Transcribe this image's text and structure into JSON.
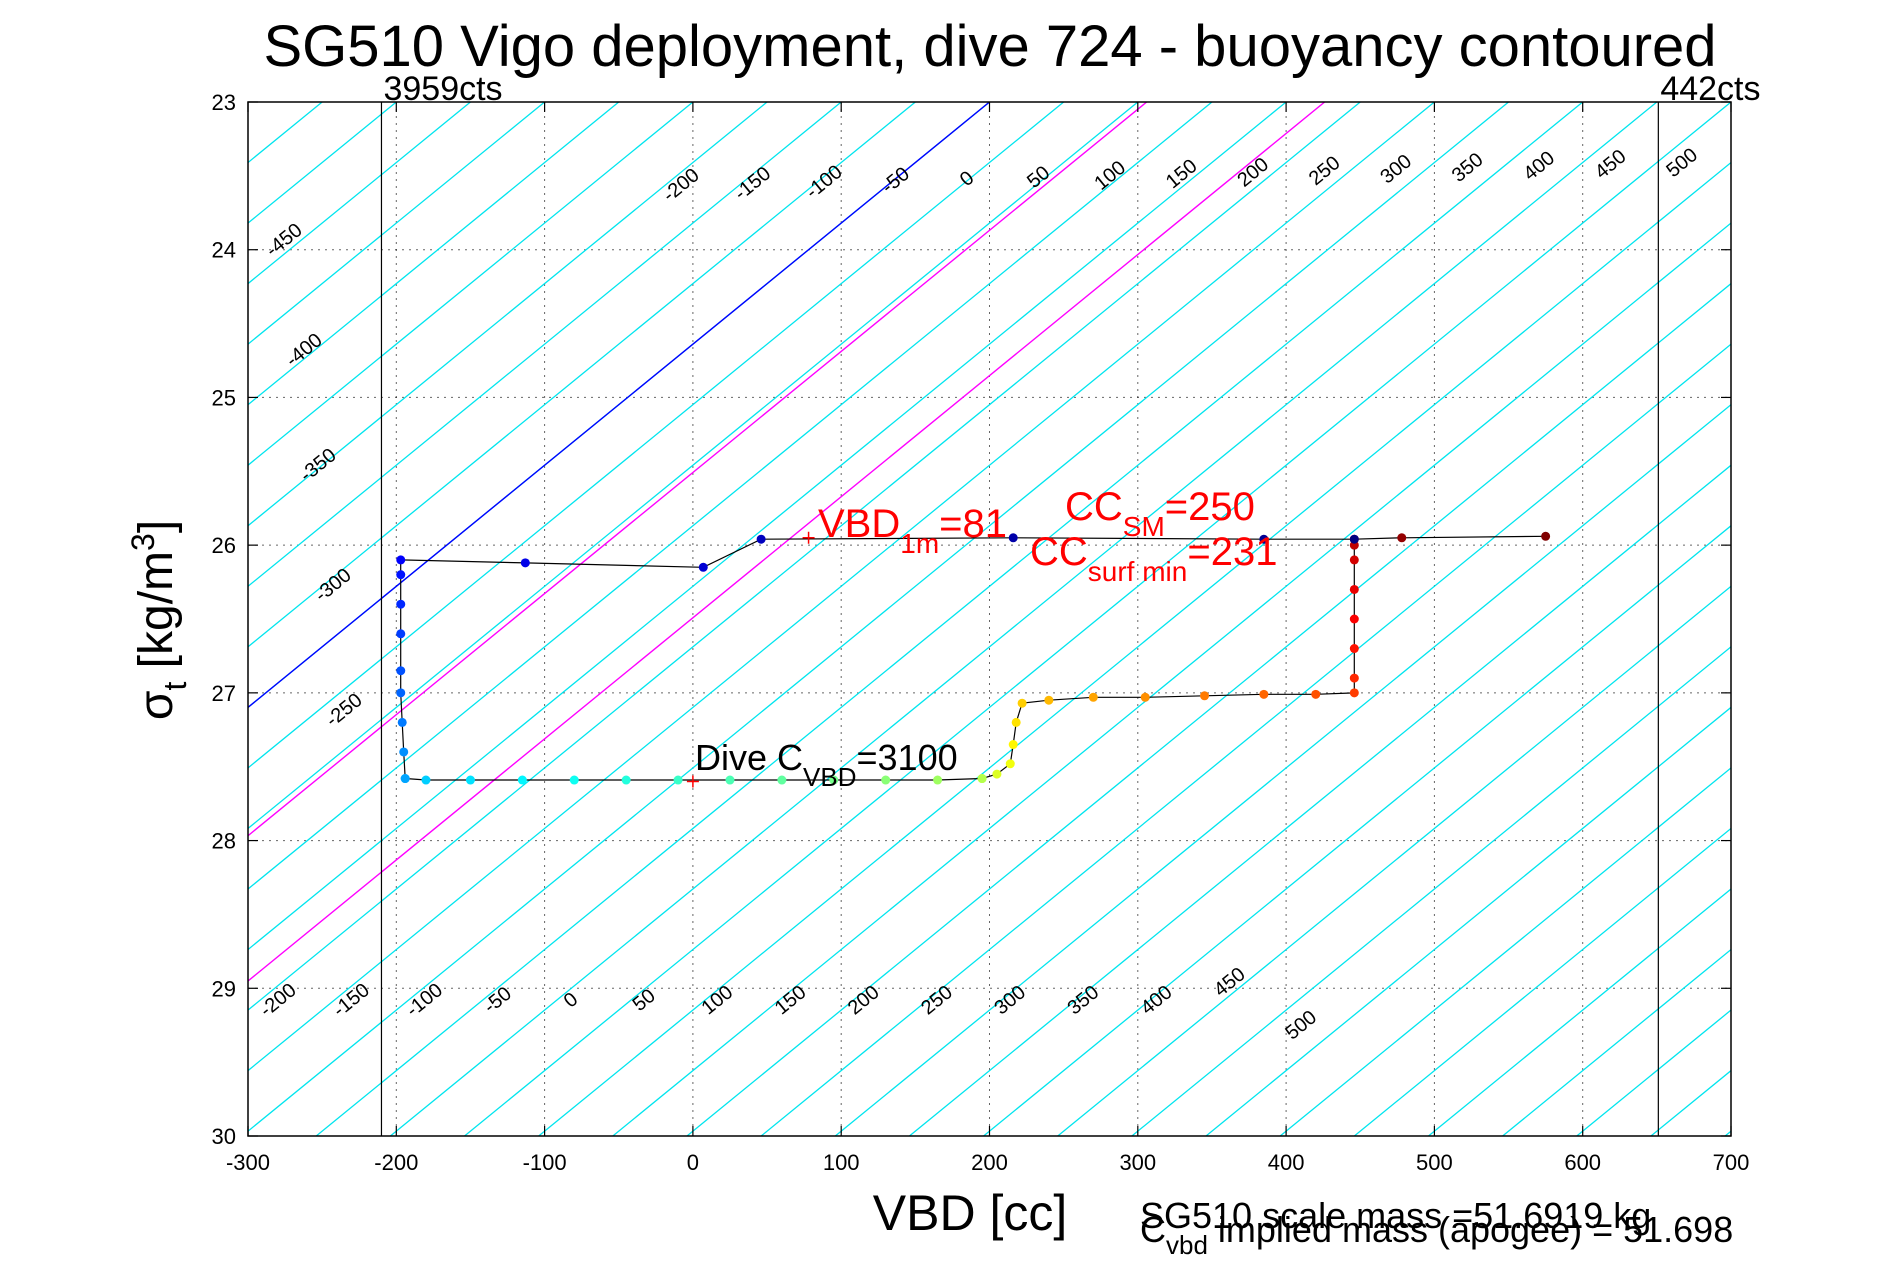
{
  "chart_data": {
    "type": "scatter",
    "title": "SG510 Vigo deployment, dive 724 - buoyancy contoured",
    "xlabel": "VBD [cc]",
    "ylabel": {
      "base": "σ",
      "sub": "t",
      "rest": " [kg/m",
      "sup": "3",
      "close": "]"
    },
    "xlim": [
      -300,
      700
    ],
    "ylim": [
      23,
      30
    ],
    "y_reversed": true,
    "grid": true,
    "xticks": [
      -300,
      -200,
      -100,
      0,
      100,
      200,
      300,
      400,
      500,
      600,
      700
    ],
    "yticks": [
      23,
      24,
      25,
      26,
      27,
      28,
      29,
      30
    ],
    "count_lines": [
      {
        "x": -210,
        "label": "3959cts",
        "side": "right"
      },
      {
        "x": 651,
        "label": "442cts",
        "side": "left"
      }
    ],
    "contours": {
      "slope_cc_per_sigma": -122,
      "color": "#00e5ee",
      "upper_labels": [
        "-450",
        "-400",
        "-350",
        "-300",
        "-250",
        "-200",
        "-150",
        "-100",
        "-50",
        "0",
        "50",
        "100",
        "150",
        "200",
        "250",
        "300",
        "350",
        "400",
        "450",
        "500"
      ],
      "lower_labels": [
        "-200",
        "-150",
        "-100",
        "-50",
        "0",
        "50",
        "100",
        "150",
        "200",
        "250",
        "300",
        "350",
        "400",
        "450",
        "500"
      ],
      "zero_color": "#0000ff",
      "highlight_color": "#ff00ff",
      "highlight_values": [
        81,
        231,
        250
      ]
    },
    "trace": {
      "descent": [
        {
          "x": 575,
          "y": 25.94
        },
        {
          "x": 478,
          "y": 25.95
        },
        {
          "x": 446,
          "y": 25.96
        },
        {
          "x": 446,
          "y": 26.0
        },
        {
          "x": 446,
          "y": 26.1
        },
        {
          "x": 446,
          "y": 26.3
        },
        {
          "x": 446,
          "y": 26.5
        },
        {
          "x": 446,
          "y": 26.7
        },
        {
          "x": 446,
          "y": 26.9
        },
        {
          "x": 446,
          "y": 27.0
        },
        {
          "x": 420,
          "y": 27.01
        },
        {
          "x": 385,
          "y": 27.01
        },
        {
          "x": 345,
          "y": 27.02
        },
        {
          "x": 305,
          "y": 27.03
        },
        {
          "x": 270,
          "y": 27.03
        },
        {
          "x": 240,
          "y": 27.05
        },
        {
          "x": 222,
          "y": 27.07
        },
        {
          "x": 218,
          "y": 27.2
        },
        {
          "x": 216,
          "y": 27.35
        },
        {
          "x": 214,
          "y": 27.48
        },
        {
          "x": 205,
          "y": 27.55
        },
        {
          "x": 195,
          "y": 27.58
        }
      ],
      "bottom": [
        {
          "x": 195,
          "y": 27.58
        },
        {
          "x": 165,
          "y": 27.59
        },
        {
          "x": 130,
          "y": 27.59
        },
        {
          "x": 95,
          "y": 27.59
        },
        {
          "x": 60,
          "y": 27.59
        },
        {
          "x": 25,
          "y": 27.59
        },
        {
          "x": -10,
          "y": 27.59
        },
        {
          "x": -45,
          "y": 27.59
        },
        {
          "x": -80,
          "y": 27.59
        },
        {
          "x": -115,
          "y": 27.59
        },
        {
          "x": -150,
          "y": 27.59
        },
        {
          "x": -180,
          "y": 27.59
        },
        {
          "x": -194,
          "y": 27.58
        }
      ],
      "ascent": [
        {
          "x": -194,
          "y": 27.58
        },
        {
          "x": -195,
          "y": 27.4
        },
        {
          "x": -196,
          "y": 27.2
        },
        {
          "x": -197,
          "y": 27.0
        },
        {
          "x": -197,
          "y": 26.85
        },
        {
          "x": -197,
          "y": 26.6
        },
        {
          "x": -197,
          "y": 26.4
        },
        {
          "x": -197,
          "y": 26.2
        },
        {
          "x": -197,
          "y": 26.1
        },
        {
          "x": -113,
          "y": 26.12
        },
        {
          "x": 7,
          "y": 26.15
        },
        {
          "x": 46,
          "y": 25.96
        },
        {
          "x": 216,
          "y": 25.95
        },
        {
          "x": 385,
          "y": 25.96
        },
        {
          "x": 446,
          "y": 25.96
        }
      ]
    },
    "markers": [
      {
        "x": 78,
        "y": 25.95,
        "color": "#ff0000"
      },
      {
        "x": 0,
        "y": 27.6,
        "color": "#ff0000"
      }
    ]
  },
  "annotations": {
    "vbd1m": {
      "base": "VBD",
      "sub": "1m",
      "value": "=81",
      "color": "#ff0000"
    },
    "ccsm": {
      "base": "CC",
      "sub": "SM",
      "value": "=250",
      "color": "#ff0000"
    },
    "ccsurf": {
      "base": "CC",
      "sub": "surf min",
      "value": "=231",
      "color": "#ff0000"
    },
    "divecvbd": {
      "base": "Dive C",
      "sub": "VBD",
      "value": "=3100",
      "color": "#000000"
    },
    "scale_mass": "SG510 scale mass =51.6919 kg",
    "implied_mass": {
      "base": "C",
      "sub": "vbd",
      "rest": " implied mass (apogee) = 51.698"
    }
  }
}
